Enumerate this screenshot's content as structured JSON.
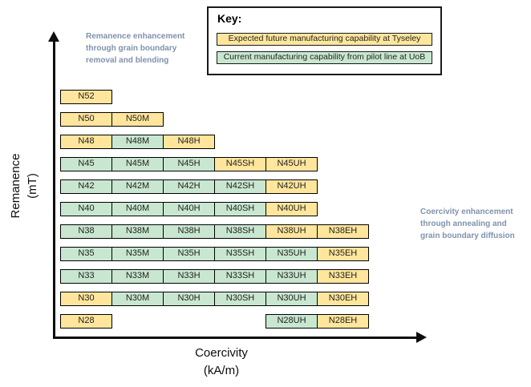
{
  "figure": {
    "y_axis_label_lines": [
      "Remanence",
      "(mT)"
    ],
    "x_axis_label_lines": [
      "Coercivity",
      "(kA/m)"
    ]
  },
  "key": {
    "title": "Key:",
    "items": [
      {
        "label": "Expected future manufacturing capability at Tyseley",
        "status": "future"
      },
      {
        "label": "Current manufacturing capability from pilot line at UoB",
        "status": "current"
      }
    ]
  },
  "annotations": {
    "left_lines": [
      "Remanence enhancement",
      "through grain boundary",
      "removal and blending"
    ],
    "right_lines": [
      "Coercivity enhancement",
      "through annealing and",
      "grain boundary diffusion"
    ]
  },
  "colors": {
    "future_fill": "#ffe69c",
    "current_fill": "#c9e7d0",
    "annotation_text": "#7f92ad",
    "cell_border": "#000000",
    "axis": "#0d0d0d"
  },
  "grid": {
    "rows": [
      {
        "grade": "N52",
        "cells": [
          {
            "label": "N52",
            "status": "future"
          }
        ]
      },
      {
        "grade": "N50",
        "cells": [
          {
            "label": "N50",
            "status": "future"
          },
          {
            "label": "N50M",
            "status": "future"
          }
        ]
      },
      {
        "grade": "N48",
        "cells": [
          {
            "label": "N48",
            "status": "future"
          },
          {
            "label": "N48M",
            "status": "current"
          },
          {
            "label": "N48H",
            "status": "future"
          }
        ]
      },
      {
        "grade": "N45",
        "cells": [
          {
            "label": "N45",
            "status": "current"
          },
          {
            "label": "N45M",
            "status": "current"
          },
          {
            "label": "N45H",
            "status": "current"
          },
          {
            "label": "N45SH",
            "status": "future"
          },
          {
            "label": "N45UH",
            "status": "future"
          }
        ]
      },
      {
        "grade": "N42",
        "cells": [
          {
            "label": "N42",
            "status": "current"
          },
          {
            "label": "N42M",
            "status": "current"
          },
          {
            "label": "N42H",
            "status": "current"
          },
          {
            "label": "N42SH",
            "status": "current"
          },
          {
            "label": "N42UH",
            "status": "future"
          }
        ]
      },
      {
        "grade": "N40",
        "cells": [
          {
            "label": "N40",
            "status": "current"
          },
          {
            "label": "N40M",
            "status": "current"
          },
          {
            "label": "N40H",
            "status": "current"
          },
          {
            "label": "N40SH",
            "status": "current"
          },
          {
            "label": "N40UH",
            "status": "future"
          }
        ]
      },
      {
        "grade": "N38",
        "cells": [
          {
            "label": "N38",
            "status": "current"
          },
          {
            "label": "N38M",
            "status": "current"
          },
          {
            "label": "N38H",
            "status": "current"
          },
          {
            "label": "N38SH",
            "status": "current"
          },
          {
            "label": "N38UH",
            "status": "future"
          },
          {
            "label": "N38EH",
            "status": "future"
          }
        ]
      },
      {
        "grade": "N35",
        "cells": [
          {
            "label": "N35",
            "status": "current"
          },
          {
            "label": "N35M",
            "status": "current"
          },
          {
            "label": "N35H",
            "status": "current"
          },
          {
            "label": "N35SH",
            "status": "current"
          },
          {
            "label": "N35UH",
            "status": "current"
          },
          {
            "label": "N35EH",
            "status": "future"
          }
        ]
      },
      {
        "grade": "N33",
        "cells": [
          {
            "label": "N33",
            "status": "current"
          },
          {
            "label": "N33M",
            "status": "current"
          },
          {
            "label": "N33H",
            "status": "current"
          },
          {
            "label": "N33SH",
            "status": "current"
          },
          {
            "label": "N33UH",
            "status": "current"
          },
          {
            "label": "N33EH",
            "status": "future"
          }
        ]
      },
      {
        "grade": "N30",
        "cells": [
          {
            "label": "N30",
            "status": "future"
          },
          {
            "label": "N30M",
            "status": "current"
          },
          {
            "label": "N30H",
            "status": "current"
          },
          {
            "label": "N30SH",
            "status": "current"
          },
          {
            "label": "N30UH",
            "status": "current"
          },
          {
            "label": "N30EH",
            "status": "future"
          }
        ]
      },
      {
        "grade": "N28",
        "cells": [
          {
            "label": "N28",
            "status": "future",
            "col": 0
          },
          {
            "label": "N28UH",
            "status": "current",
            "col": 4
          },
          {
            "label": "N28EH",
            "status": "future",
            "col": 5
          }
        ]
      }
    ]
  }
}
